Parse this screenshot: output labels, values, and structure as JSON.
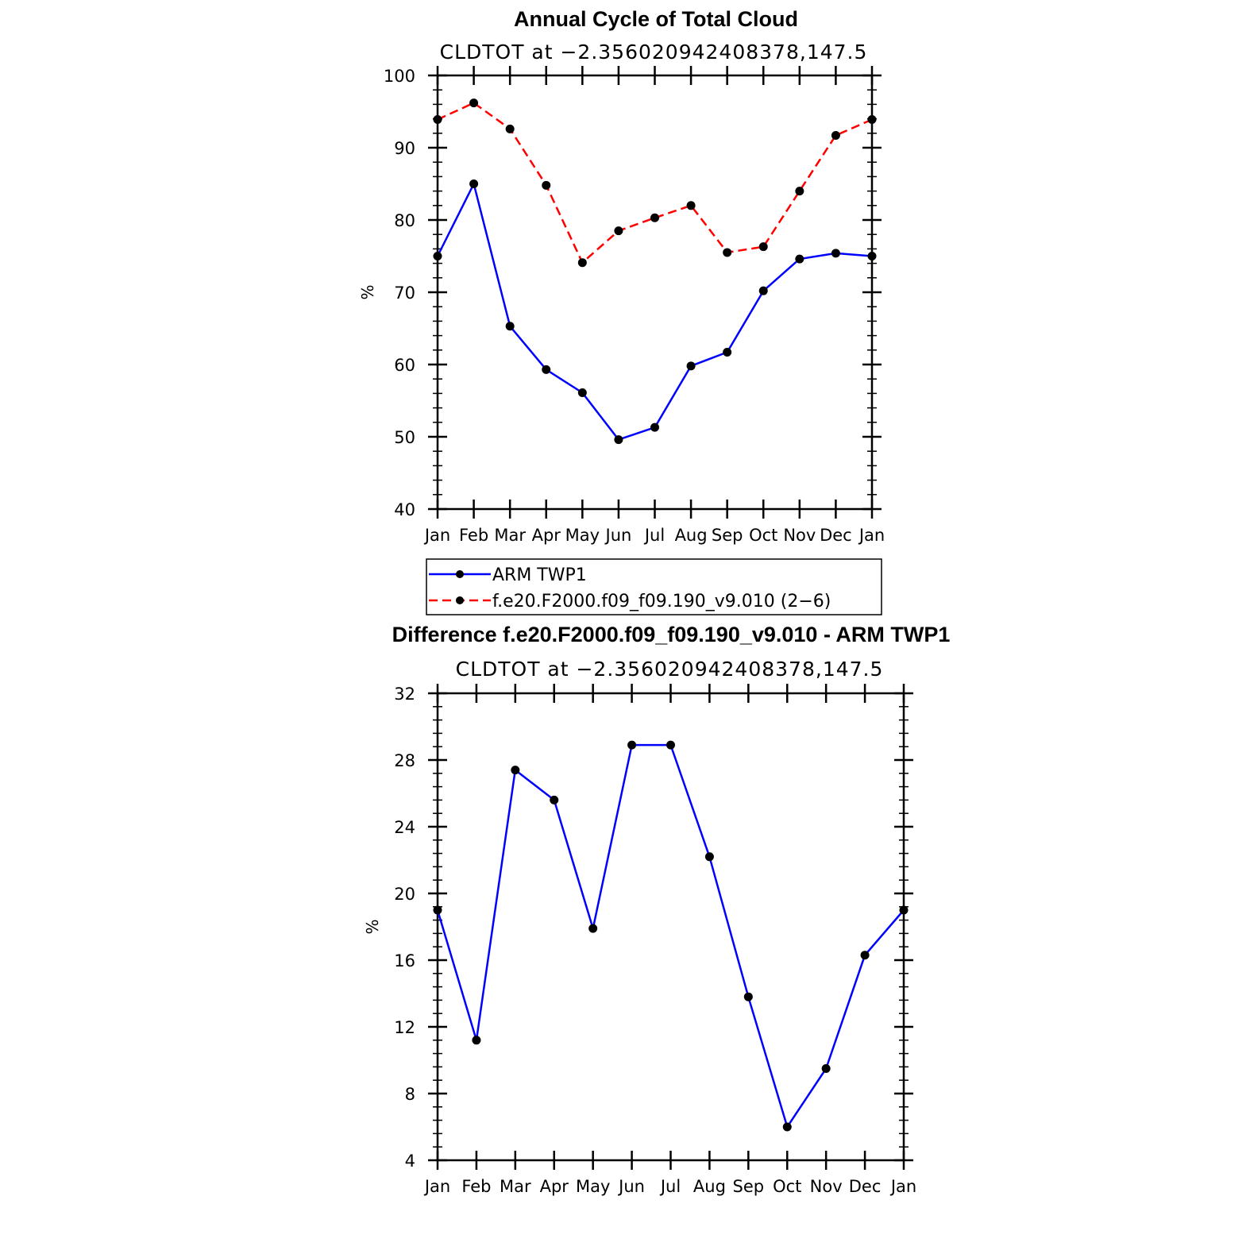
{
  "chart_data": [
    {
      "type": "line",
      "title": "Annual Cycle of Total Cloud",
      "subtitle": "CLDTOT at −2.356020942408378,147.5",
      "ylabel": "%",
      "xlabel": "",
      "ylim": [
        40,
        100
      ],
      "yticks": [
        "100",
        "90",
        "80",
        "70",
        "60",
        "50",
        "40"
      ],
      "categories": [
        "Jan",
        "Feb",
        "Mar",
        "Apr",
        "May",
        "Jun",
        "Jul",
        "Aug",
        "Sep",
        "Oct",
        "Nov",
        "Dec",
        "Jan"
      ],
      "series": [
        {
          "name": "ARM TWP1",
          "color": "#0000ff",
          "style": "solid",
          "values": [
            75.0,
            85.0,
            65.3,
            59.3,
            56.1,
            49.6,
            51.3,
            59.8,
            61.7,
            70.2,
            74.6,
            75.4,
            75.0
          ]
        },
        {
          "name": "f.e20.F2000.f09_f09.190_v9.010 (2−6)",
          "color": "#ff0000",
          "style": "dashed",
          "values": [
            93.9,
            96.2,
            92.6,
            84.8,
            74.1,
            78.5,
            80.3,
            82.0,
            75.5,
            76.3,
            84.0,
            91.7,
            93.9
          ]
        }
      ],
      "legend": "bottom"
    },
    {
      "type": "line",
      "title": "Difference f.e20.F2000.f09_f09.190_v9.010 - ARM TWP1",
      "subtitle": "CLDTOT at −2.356020942408378,147.5",
      "ylabel": "%",
      "xlabel": "",
      "ylim": [
        4,
        32
      ],
      "yticks": [
        "32",
        "28",
        "24",
        "20",
        "16",
        "12",
        "8",
        "4"
      ],
      "categories": [
        "Jan",
        "Feb",
        "Mar",
        "Apr",
        "May",
        "Jun",
        "Jul",
        "Aug",
        "Sep",
        "Oct",
        "Nov",
        "Dec",
        "Jan"
      ],
      "series": [
        {
          "color": "#0000ff",
          "style": "solid",
          "values": [
            19.0,
            11.2,
            27.4,
            25.6,
            17.9,
            28.9,
            28.9,
            22.2,
            13.8,
            6.0,
            9.5,
            16.3,
            19.0
          ]
        }
      ]
    }
  ]
}
